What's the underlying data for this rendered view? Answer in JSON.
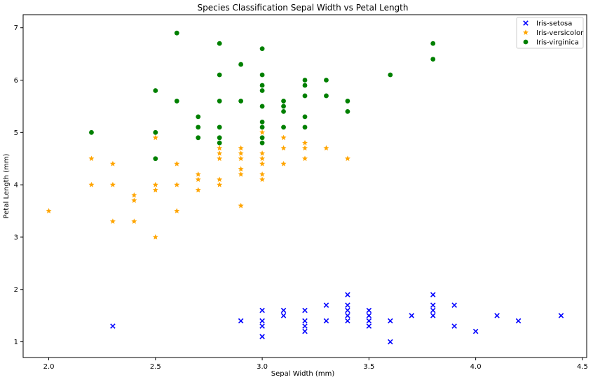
{
  "chart_data": {
    "type": "scatter",
    "title": "Species Classification Sepal Width vs Petal Length",
    "xlabel": "Sepal Width (mm)",
    "ylabel": "Petal Length (mm)",
    "xlim": [
      1.88,
      4.52
    ],
    "ylim": [
      0.7,
      7.25
    ],
    "xticks": [
      "2.0",
      "2.5",
      "3.0",
      "3.5",
      "4.0",
      "4.5"
    ],
    "yticks": [
      "1",
      "2",
      "3",
      "4",
      "5",
      "6",
      "7"
    ],
    "grid": false,
    "legend_position": "top-right",
    "series": [
      {
        "name": "Iris-setosa",
        "marker": "x",
        "color": "#0000ff",
        "points": [
          [
            2.3,
            1.3
          ],
          [
            2.9,
            1.4
          ],
          [
            3.0,
            1.1
          ],
          [
            3.0,
            1.3
          ],
          [
            3.0,
            1.4
          ],
          [
            3.0,
            1.6
          ],
          [
            3.1,
            1.5
          ],
          [
            3.1,
            1.6
          ],
          [
            3.2,
            1.2
          ],
          [
            3.2,
            1.3
          ],
          [
            3.2,
            1.4
          ],
          [
            3.2,
            1.6
          ],
          [
            3.3,
            1.4
          ],
          [
            3.3,
            1.7
          ],
          [
            3.4,
            1.4
          ],
          [
            3.4,
            1.5
          ],
          [
            3.4,
            1.6
          ],
          [
            3.4,
            1.7
          ],
          [
            3.4,
            1.9
          ],
          [
            3.5,
            1.3
          ],
          [
            3.5,
            1.4
          ],
          [
            3.5,
            1.5
          ],
          [
            3.5,
            1.6
          ],
          [
            3.6,
            1.0
          ],
          [
            3.6,
            1.4
          ],
          [
            3.7,
            1.5
          ],
          [
            3.8,
            1.5
          ],
          [
            3.8,
            1.6
          ],
          [
            3.8,
            1.7
          ],
          [
            3.8,
            1.9
          ],
          [
            3.9,
            1.3
          ],
          [
            3.9,
            1.7
          ],
          [
            4.0,
            1.2
          ],
          [
            4.1,
            1.5
          ],
          [
            4.2,
            1.4
          ],
          [
            4.4,
            1.5
          ]
        ]
      },
      {
        "name": "Iris-versicolor",
        "marker": "*",
        "color": "#ffa500",
        "points": [
          [
            2.0,
            3.5
          ],
          [
            2.2,
            4.0
          ],
          [
            2.2,
            4.5
          ],
          [
            2.3,
            3.3
          ],
          [
            2.3,
            4.0
          ],
          [
            2.3,
            4.4
          ],
          [
            2.4,
            3.3
          ],
          [
            2.4,
            3.7
          ],
          [
            2.4,
            3.8
          ],
          [
            2.5,
            3.0
          ],
          [
            2.5,
            3.9
          ],
          [
            2.5,
            4.0
          ],
          [
            2.5,
            4.9
          ],
          [
            2.6,
            3.5
          ],
          [
            2.6,
            4.0
          ],
          [
            2.6,
            4.4
          ],
          [
            2.7,
            3.9
          ],
          [
            2.7,
            4.1
          ],
          [
            2.7,
            4.2
          ],
          [
            2.8,
            4.0
          ],
          [
            2.8,
            4.1
          ],
          [
            2.8,
            4.5
          ],
          [
            2.8,
            4.6
          ],
          [
            2.8,
            4.7
          ],
          [
            2.9,
            3.6
          ],
          [
            2.9,
            4.2
          ],
          [
            2.9,
            4.3
          ],
          [
            2.9,
            4.5
          ],
          [
            2.9,
            4.6
          ],
          [
            2.9,
            4.7
          ],
          [
            3.0,
            4.1
          ],
          [
            3.0,
            4.2
          ],
          [
            3.0,
            4.4
          ],
          [
            3.0,
            4.5
          ],
          [
            3.0,
            4.6
          ],
          [
            3.0,
            5.0
          ],
          [
            3.1,
            4.4
          ],
          [
            3.1,
            4.7
          ],
          [
            3.1,
            4.9
          ],
          [
            3.2,
            4.5
          ],
          [
            3.2,
            4.7
          ],
          [
            3.2,
            4.8
          ],
          [
            3.3,
            4.7
          ],
          [
            3.4,
            4.5
          ]
        ]
      },
      {
        "name": "Iris-virginica",
        "marker": "o",
        "color": "#008000",
        "points": [
          [
            2.2,
            5.0
          ],
          [
            2.5,
            4.5
          ],
          [
            2.5,
            5.0
          ],
          [
            2.5,
            5.8
          ],
          [
            2.6,
            5.6
          ],
          [
            2.6,
            6.9
          ],
          [
            2.7,
            4.9
          ],
          [
            2.7,
            5.1
          ],
          [
            2.7,
            5.3
          ],
          [
            2.8,
            4.8
          ],
          [
            2.8,
            4.9
          ],
          [
            2.8,
            5.1
          ],
          [
            2.8,
            5.6
          ],
          [
            2.8,
            6.1
          ],
          [
            2.8,
            6.7
          ],
          [
            2.9,
            5.6
          ],
          [
            2.9,
            6.3
          ],
          [
            3.0,
            4.8
          ],
          [
            3.0,
            4.9
          ],
          [
            3.0,
            5.1
          ],
          [
            3.0,
            5.2
          ],
          [
            3.0,
            5.5
          ],
          [
            3.0,
            5.8
          ],
          [
            3.0,
            5.9
          ],
          [
            3.0,
            6.1
          ],
          [
            3.0,
            6.6
          ],
          [
            3.1,
            5.1
          ],
          [
            3.1,
            5.4
          ],
          [
            3.1,
            5.5
          ],
          [
            3.1,
            5.6
          ],
          [
            3.2,
            5.1
          ],
          [
            3.2,
            5.3
          ],
          [
            3.2,
            5.7
          ],
          [
            3.2,
            5.9
          ],
          [
            3.2,
            6.0
          ],
          [
            3.3,
            5.7
          ],
          [
            3.3,
            6.0
          ],
          [
            3.4,
            5.4
          ],
          [
            3.4,
            5.6
          ],
          [
            3.6,
            6.1
          ],
          [
            3.8,
            6.4
          ],
          [
            3.8,
            6.7
          ]
        ]
      }
    ]
  }
}
